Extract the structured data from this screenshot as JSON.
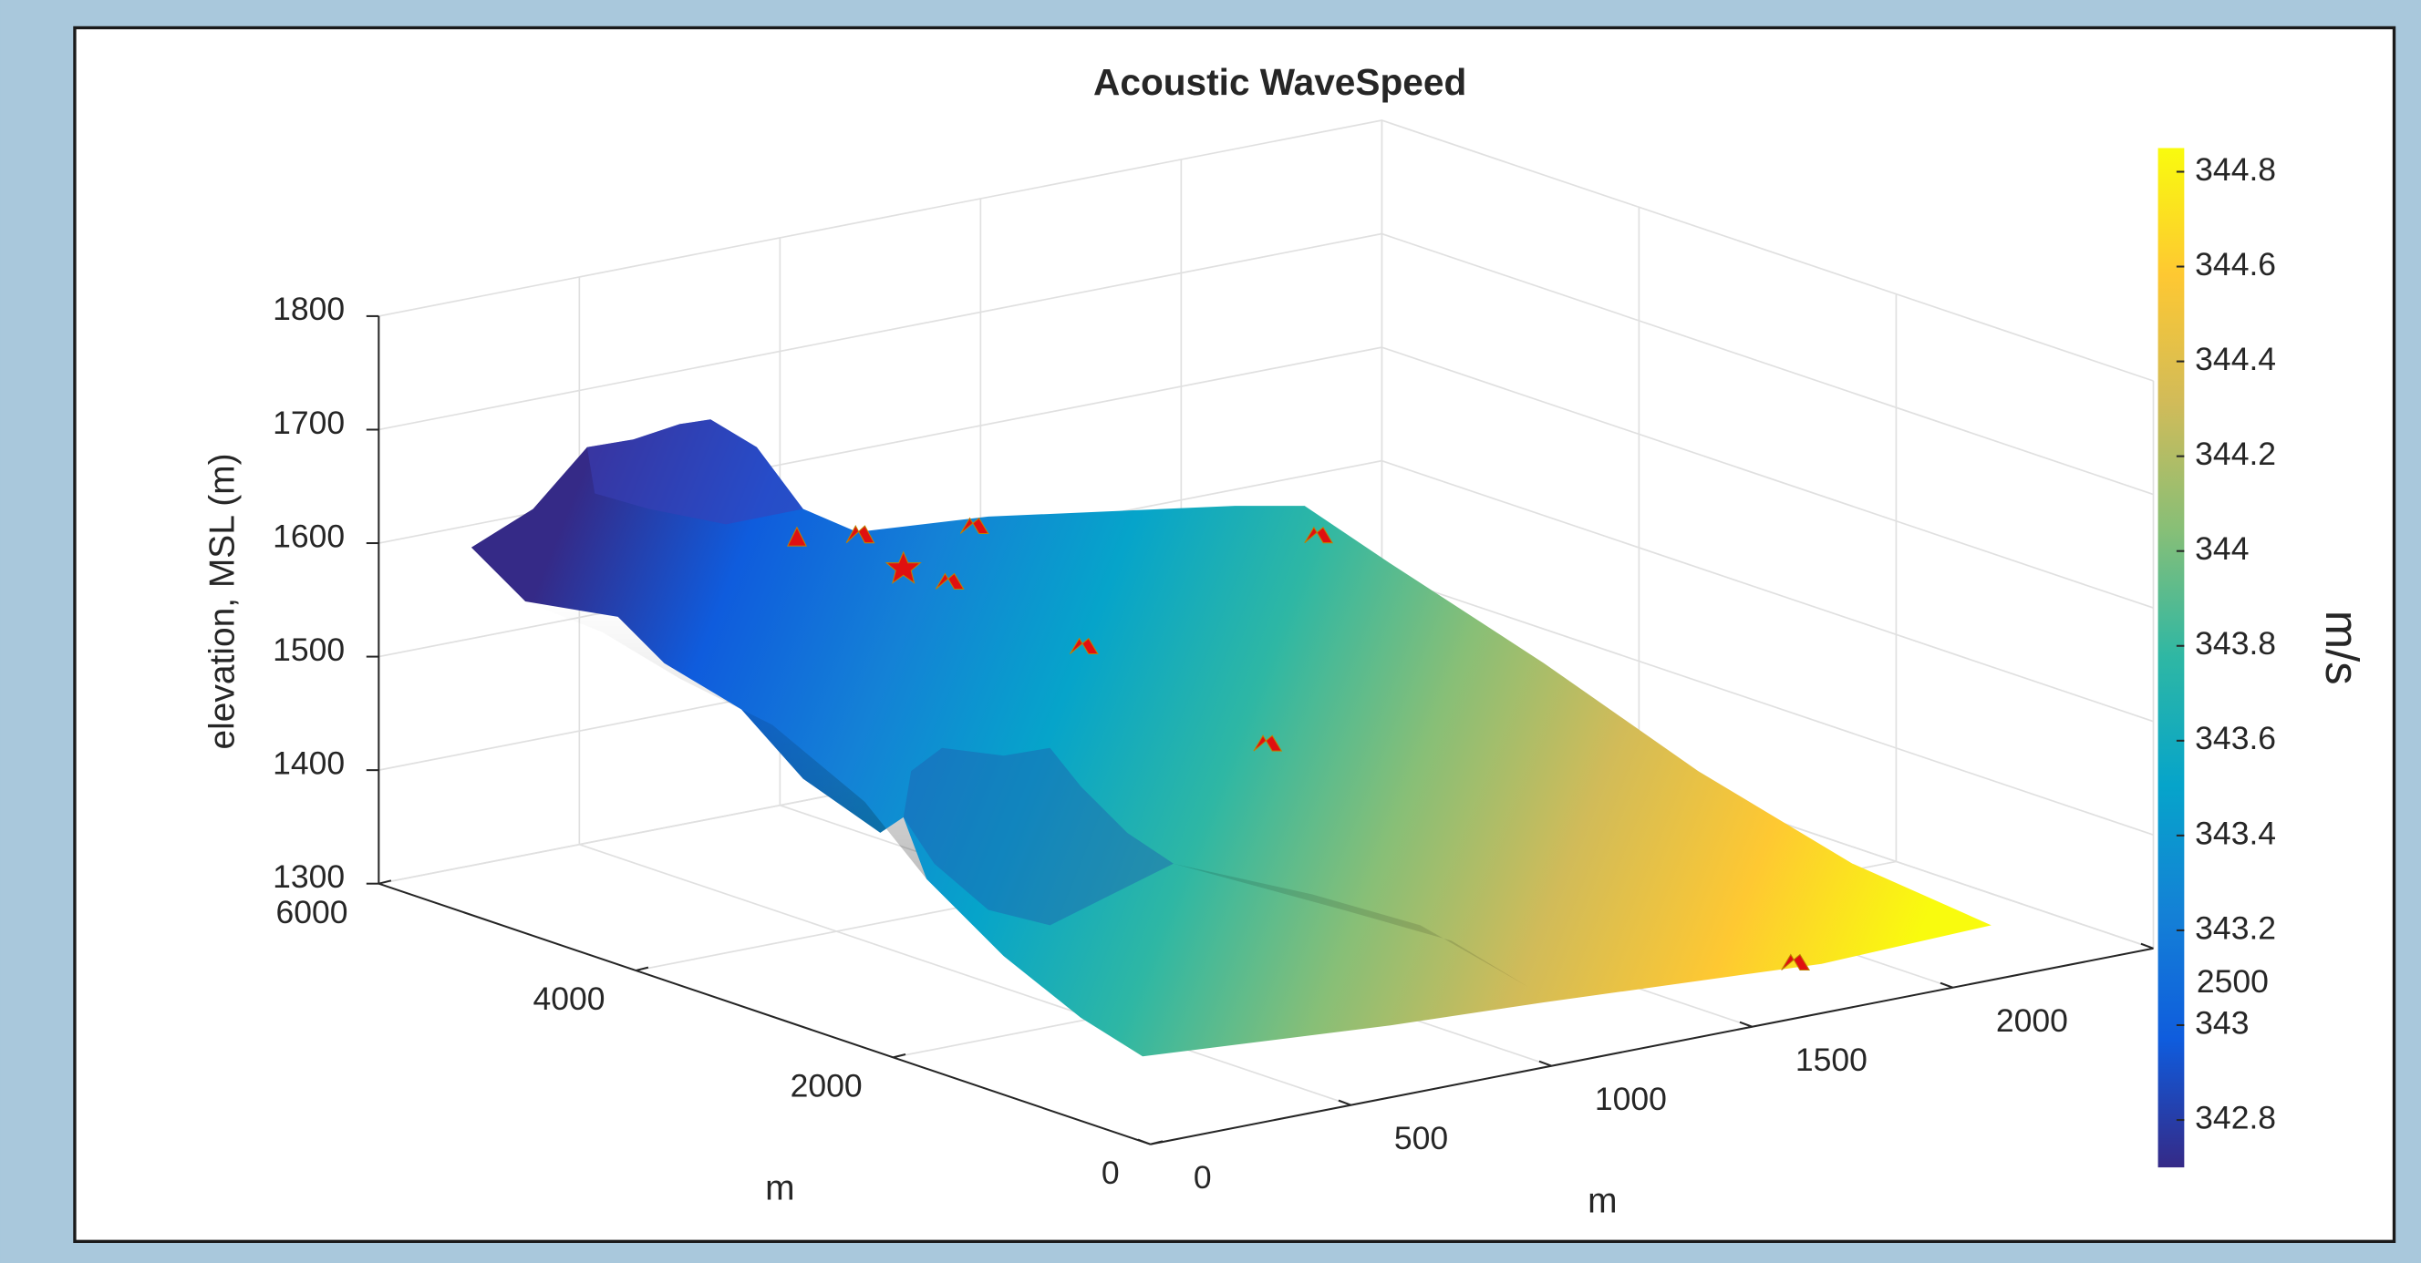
{
  "chart_data": {
    "type": "surface",
    "title": "Acoustic WaveSpeed",
    "xlabel": "m",
    "ylabel": "m",
    "zlabel": "elevation, MSL (m)",
    "xlim": [
      0,
      2500
    ],
    "xticks": [
      0,
      500,
      1000,
      1500,
      2000,
      2500
    ],
    "ylim": [
      0,
      6000
    ],
    "yticks": [
      0,
      2000,
      4000,
      6000
    ],
    "zlim": [
      1300,
      1800
    ],
    "zticks": [
      1300,
      1400,
      1500,
      1600,
      1700,
      1800
    ],
    "grid": true,
    "colorbar": {
      "label": "m/s",
      "clim": [
        342.7,
        344.85
      ],
      "ticks": [
        342.8,
        343,
        343.2,
        343.4,
        343.6,
        343.8,
        344,
        344.2,
        344.4,
        344.6,
        344.8
      ],
      "colors": [
        "#352a87",
        "#0f5cdd",
        "#1481d6",
        "#06a4ca",
        "#2eb7a4",
        "#87bf77",
        "#d1bb59",
        "#fec832",
        "#f9fb0e"
      ]
    }
  }
}
